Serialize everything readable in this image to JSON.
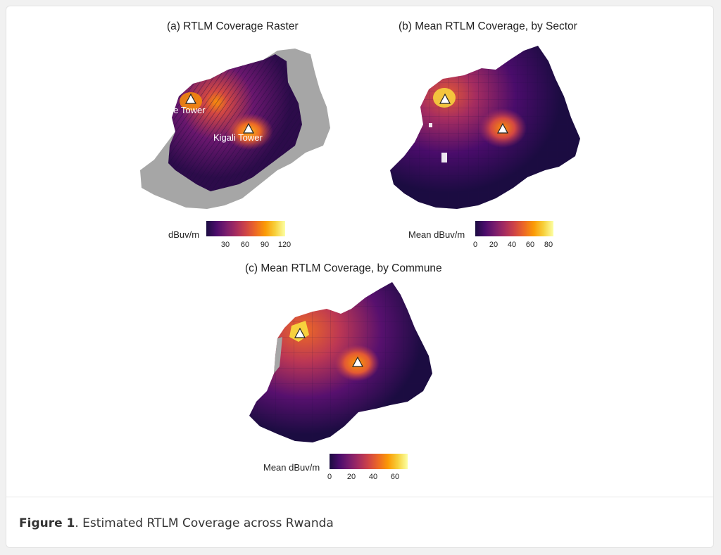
{
  "panels": [
    {
      "title": "(a)  RTLM Coverage Raster",
      "legend_title": "dBuv/m",
      "ticks": [
        "30",
        "60",
        "90",
        "120"
      ],
      "tower_labels": [
        "Muhe Tower",
        "Kigali Tower"
      ]
    },
    {
      "title": "(b)  Mean RTLM Coverage, by Sector",
      "legend_title": "Mean dBuv/m",
      "ticks": [
        "0",
        "20",
        "40",
        "60",
        "80"
      ]
    },
    {
      "title": "(c)  Mean RTLM Coverage, by Commune",
      "legend_title": "Mean dBuv/m",
      "ticks": [
        "0",
        "20",
        "40",
        "60"
      ]
    }
  ],
  "caption": {
    "label": "Figure 1",
    "text": ". Estimated RTLM Coverage across Rwanda"
  },
  "colors": {
    "low": "#1b0c41",
    "mid": "#b73779",
    "high": "#fcffa4",
    "missing": "#a6a6a6"
  }
}
